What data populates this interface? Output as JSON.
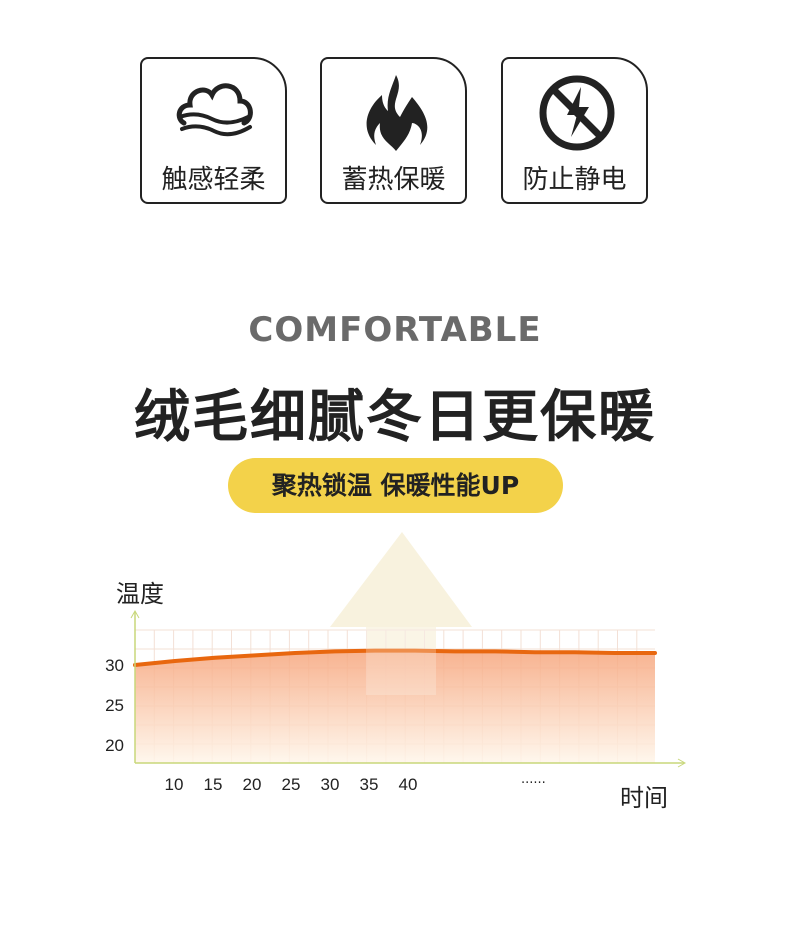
{
  "features": [
    {
      "icon": "cloud-icon",
      "label": "触感轻柔"
    },
    {
      "icon": "flame-icon",
      "label": "蓄热保暖"
    },
    {
      "icon": "no-static-icon",
      "label": "防止静电"
    }
  ],
  "headline_en": "COMFORTABLE",
  "headline": "绒毛细腻冬日更保暖",
  "badge": "聚热锁温 保暖性能UP",
  "colors": {
    "accent": "#f3d24a",
    "line": "#e8670f",
    "fill": "#f6a57c"
  },
  "chart_data": {
    "type": "area",
    "ylabel": "温度",
    "xlabel": "时间",
    "x_ticks": [
      "10",
      "15",
      "20",
      "25",
      "30",
      "35",
      "40"
    ],
    "x_ellipsis": "......",
    "y_ticks": [
      "30",
      "25",
      "20"
    ],
    "x": [
      5,
      10,
      15,
      20,
      25,
      30,
      35,
      40,
      45,
      50,
      55,
      60,
      65,
      70
    ],
    "values": [
      30,
      30.5,
      30.9,
      31.2,
      31.5,
      31.7,
      31.8,
      31.8,
      31.7,
      31.7,
      31.6,
      31.6,
      31.5,
      31.5
    ],
    "grid": true
  }
}
